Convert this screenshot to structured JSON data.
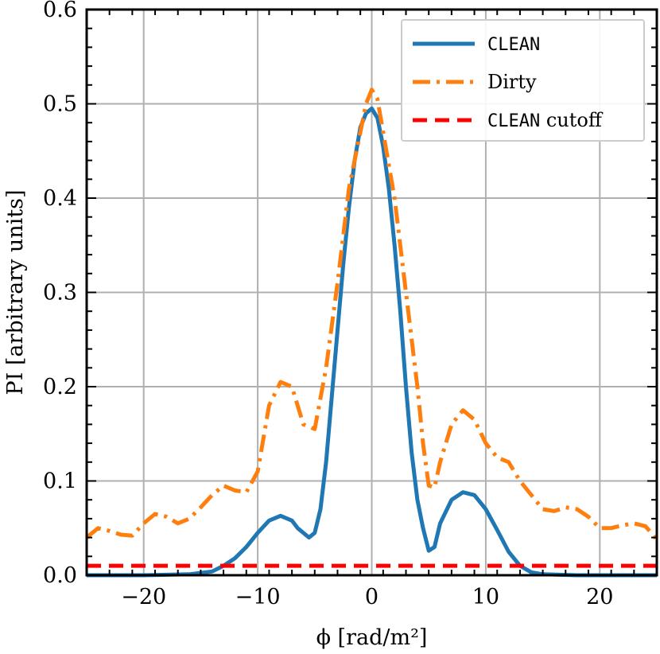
{
  "chart_data": {
    "type": "line",
    "title": "",
    "xlabel": "ϕ [rad/m²]",
    "ylabel": "PI [arbitrary units]",
    "xlim": [
      -25,
      25
    ],
    "ylim": [
      0,
      0.6
    ],
    "grid": true,
    "legend_position": "top-right",
    "x_ticks": [
      -20,
      -10,
      0,
      10,
      20
    ],
    "x_tick_labels": [
      "−20",
      "−10",
      "0",
      "10",
      "20"
    ],
    "y_ticks": [
      0.0,
      0.1,
      0.2,
      0.3,
      0.4,
      0.5,
      0.6
    ],
    "y_tick_labels": [
      "0.0",
      "0.1",
      "0.2",
      "0.3",
      "0.4",
      "0.5",
      "0.6"
    ],
    "series": [
      {
        "name": "CLEAN",
        "color": "#1f77b4",
        "style": "solid",
        "x": [
          -25,
          -20,
          -16,
          -14,
          -13,
          -12,
          -11,
          -10,
          -9,
          -8,
          -7,
          -6.5,
          -5.5,
          -5,
          -4.5,
          -4,
          -3.5,
          -3,
          -2.5,
          -2,
          -1.5,
          -1,
          -0.5,
          0,
          0.5,
          1,
          1.5,
          2,
          2.5,
          3,
          3.5,
          4,
          4.5,
          5,
          5.5,
          6,
          7,
          8,
          9,
          10,
          11,
          12,
          13,
          14,
          15,
          18,
          25
        ],
        "y": [
          0.0,
          0.0,
          0.001,
          0.004,
          0.01,
          0.018,
          0.03,
          0.045,
          0.058,
          0.063,
          0.058,
          0.05,
          0.04,
          0.045,
          0.07,
          0.12,
          0.19,
          0.26,
          0.33,
          0.39,
          0.44,
          0.475,
          0.49,
          0.495,
          0.485,
          0.455,
          0.41,
          0.35,
          0.28,
          0.2,
          0.13,
          0.08,
          0.05,
          0.026,
          0.03,
          0.055,
          0.08,
          0.088,
          0.085,
          0.07,
          0.048,
          0.025,
          0.01,
          0.003,
          0.001,
          0.0,
          0.0
        ]
      },
      {
        "name": "Dirty",
        "color": "#ff7f0e",
        "style": "dashdot",
        "x": [
          -25,
          -24,
          -23,
          -22,
          -21,
          -20,
          -19,
          -18,
          -17,
          -16,
          -15,
          -14,
          -13,
          -12,
          -11,
          -10,
          -9,
          -8,
          -7,
          -6,
          -5,
          -4,
          -3,
          -2,
          -1,
          -0.5,
          0,
          0.5,
          1,
          2,
          3,
          4,
          4.5,
          5,
          5.5,
          6,
          7,
          8,
          9,
          10,
          11,
          12,
          13,
          14,
          15,
          16,
          17,
          18,
          19,
          20,
          21,
          22,
          23,
          24,
          25
        ],
        "y": [
          0.04,
          0.05,
          0.047,
          0.043,
          0.042,
          0.055,
          0.065,
          0.062,
          0.055,
          0.06,
          0.072,
          0.085,
          0.095,
          0.09,
          0.088,
          0.11,
          0.18,
          0.205,
          0.2,
          0.16,
          0.155,
          0.22,
          0.31,
          0.41,
          0.47,
          0.5,
          0.515,
          0.505,
          0.47,
          0.4,
          0.3,
          0.2,
          0.14,
          0.095,
          0.093,
          0.12,
          0.16,
          0.175,
          0.165,
          0.14,
          0.125,
          0.12,
          0.1,
          0.085,
          0.07,
          0.068,
          0.072,
          0.07,
          0.062,
          0.05,
          0.05,
          0.053,
          0.055,
          0.052,
          0.038
        ]
      },
      {
        "name": "CLEAN cutoff",
        "color": "#ff0000",
        "style": "dashed",
        "x": [
          -25,
          25
        ],
        "y": [
          0.01,
          0.01
        ]
      }
    ],
    "legend": [
      {
        "label": "CLEAN",
        "mono": true
      },
      {
        "label": "Dirty",
        "mono": false
      },
      {
        "label": "CLEAN",
        "suffix": " cutoff",
        "mono": true
      }
    ]
  }
}
